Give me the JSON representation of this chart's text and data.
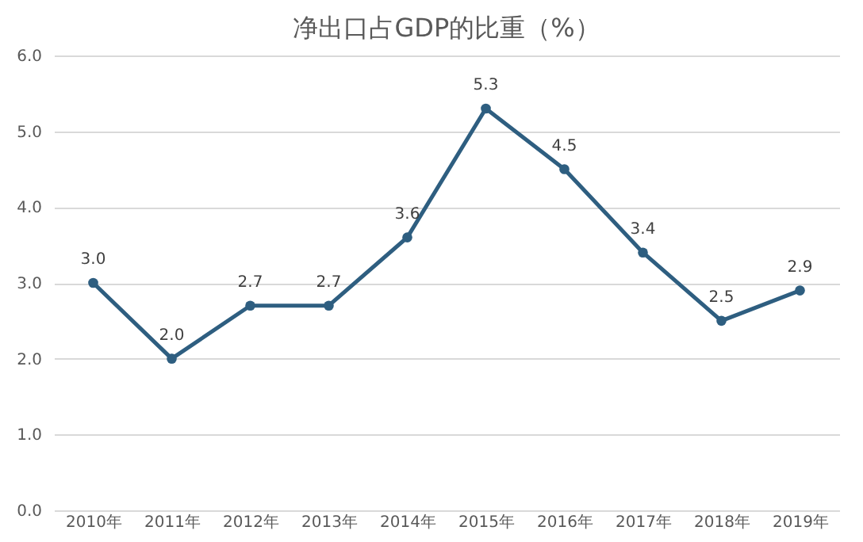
{
  "chart_data": {
    "type": "line",
    "title": "净出口占GDP的比重（%）",
    "categories": [
      "2010年",
      "2011年",
      "2012年",
      "2013年",
      "2014年",
      "2015年",
      "2016年",
      "2017年",
      "2018年",
      "2019年"
    ],
    "values": [
      3.0,
      2.0,
      2.7,
      2.7,
      3.6,
      5.3,
      4.5,
      3.4,
      2.5,
      2.9
    ],
    "value_labels": [
      "3.0",
      "2.0",
      "2.7",
      "2.7",
      "3.6",
      "5.3",
      "4.5",
      "3.4",
      "2.5",
      "2.9"
    ],
    "color": "#2e5e80",
    "ylim": [
      0,
      6
    ],
    "yticks": [
      {
        "value": 0,
        "label": "0.0"
      },
      {
        "value": 1,
        "label": "1.0"
      },
      {
        "value": 2,
        "label": "2.0"
      },
      {
        "value": 3,
        "label": "3.0"
      },
      {
        "value": 4,
        "label": "4.0"
      },
      {
        "value": 5,
        "label": "5.0"
      },
      {
        "value": 6,
        "label": "6.0"
      }
    ],
    "grid": "y",
    "marker": "circle",
    "line_style": "solid"
  }
}
